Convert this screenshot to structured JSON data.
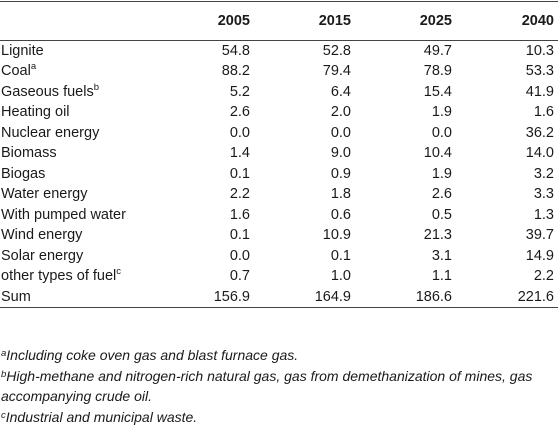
{
  "table": {
    "headers": [
      "",
      "2005",
      "2015",
      "2025",
      "2040"
    ],
    "rows": [
      {
        "label": "Lignite",
        "sup": "",
        "values": [
          "54.8",
          "52.8",
          "49.7",
          "10.3"
        ]
      },
      {
        "label": "Coal",
        "sup": "a",
        "values": [
          "88.2",
          "79.4",
          "78.9",
          "53.3"
        ]
      },
      {
        "label": "Gaseous fuels",
        "sup": "b",
        "values": [
          "5.2",
          "6.4",
          "15.4",
          "41.9"
        ]
      },
      {
        "label": "Heating oil",
        "sup": "",
        "values": [
          "2.6",
          "2.0",
          "1.9",
          "1.6"
        ]
      },
      {
        "label": "Nuclear energy",
        "sup": "",
        "values": [
          "0.0",
          "0.0",
          "0.0",
          "36.2"
        ]
      },
      {
        "label": "Biomass",
        "sup": "",
        "values": [
          "1.4",
          "9.0",
          "10.4",
          "14.0"
        ]
      },
      {
        "label": "Biogas",
        "sup": "",
        "values": [
          "0.1",
          "0.9",
          "1.9",
          "3.2"
        ]
      },
      {
        "label": "Water energy",
        "sup": "",
        "values": [
          "2.2",
          "1.8",
          "2.6",
          "3.3"
        ]
      },
      {
        "label": "With pumped water",
        "sup": "",
        "values": [
          "1.6",
          "0.6",
          "0.5",
          "1.3"
        ]
      },
      {
        "label": "Wind energy",
        "sup": "",
        "values": [
          "0.1",
          "10.9",
          "21.3",
          "39.7"
        ]
      },
      {
        "label": "Solar energy",
        "sup": "",
        "values": [
          "0.0",
          "0.1",
          "3.1",
          "14.9"
        ]
      },
      {
        "label": "other types of fuel",
        "sup": "c",
        "values": [
          "0.7",
          "1.0",
          "1.1",
          "2.2"
        ]
      },
      {
        "label": "Sum",
        "sup": "",
        "values": [
          "156.9",
          "164.9",
          "186.6",
          "221.6"
        ]
      }
    ]
  },
  "footnotes": [
    {
      "mark": "a",
      "text": "Including coke oven gas and blast furnace gas."
    },
    {
      "mark": "b",
      "text": "High-methane and nitrogen-rich natural gas, gas from demethanization of mines, gas accompanying crude oil."
    },
    {
      "mark": "c",
      "text": "Industrial and municipal waste."
    }
  ]
}
